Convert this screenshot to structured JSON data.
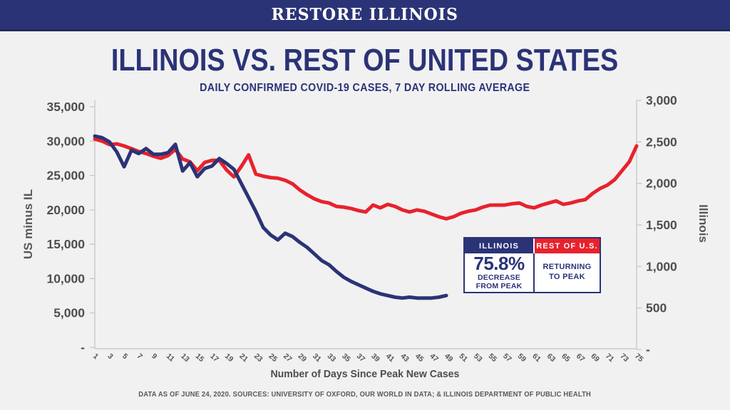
{
  "banner": {
    "title": "RESTORE ILLINOIS"
  },
  "title": "ILLINOIS VS. REST OF UNITED STATES",
  "subtitle": "DAILY CONFIRMED COVID-19 CASES, 7 DAY ROLLING AVERAGE",
  "colors": {
    "navy": "#2b3377",
    "red": "#e8222d",
    "banner_bg": "#2b3377",
    "axis_text": "#4d4e50",
    "x_tick_text": "#55565a",
    "muted_text": "#58595b",
    "axis_line": "#c4c4c7",
    "background": "#f1f1f2"
  },
  "chart_data": {
    "type": "line",
    "title": "ILLINOIS VS. REST OF UNITED STATES",
    "subtitle": "DAILY CONFIRMED COVID-19 CASES, 7 DAY ROLLING AVERAGE",
    "xlabel": "Number of Days Since Peak New Cases",
    "x_ticks": [
      1,
      3,
      5,
      7,
      9,
      11,
      13,
      15,
      17,
      19,
      21,
      23,
      25,
      27,
      29,
      31,
      33,
      35,
      37,
      39,
      41,
      43,
      45,
      47,
      49,
      51,
      53,
      55,
      57,
      59,
      61,
      63,
      65,
      67,
      69,
      71,
      73,
      75
    ],
    "x_range": [
      1,
      75
    ],
    "grid": false,
    "legend_position": "inside-right",
    "left_axis": {
      "label": "US minus IL",
      "min": 0,
      "max": 35000,
      "ticks": [
        "35,000",
        "30,000",
        "25,000",
        "20,000",
        "15,000",
        "10,000",
        "5,000",
        "-"
      ]
    },
    "right_axis": {
      "label": "Illinois",
      "min": 0,
      "max": 3000,
      "ticks": [
        "3,000",
        "2,500",
        "2,000",
        "1,500",
        "1,000",
        "500",
        "-"
      ]
    },
    "series": [
      {
        "name": "Rest of U.S. (US minus IL)",
        "axis": "left",
        "color_key": "red",
        "x_start": 1,
        "x_step": 1,
        "values": [
          30300,
          30000,
          29500,
          29600,
          29300,
          28900,
          28500,
          28200,
          27800,
          27500,
          27900,
          28800,
          27400,
          27000,
          25700,
          26900,
          27200,
          27200,
          25800,
          24800,
          26300,
          28000,
          25200,
          24900,
          24700,
          24600,
          24300,
          23800,
          22900,
          22200,
          21600,
          21200,
          21000,
          20500,
          20400,
          20200,
          19900,
          19700,
          20700,
          20300,
          20800,
          20500,
          20000,
          19700,
          20000,
          19800,
          19400,
          19000,
          18700,
          19000,
          19500,
          19800,
          20000,
          20400,
          20700,
          20700,
          20700,
          20900,
          21000,
          20500,
          20300,
          20700,
          21000,
          21300,
          20800,
          21000,
          21300,
          21500,
          22400,
          23100,
          23600,
          24400,
          25700,
          27000,
          29300
        ]
      },
      {
        "name": "Illinois",
        "axis": "right",
        "color_key": "navy",
        "x_start": 1,
        "x_step": 1,
        "values": [
          2570,
          2550,
          2500,
          2380,
          2200,
          2400,
          2360,
          2420,
          2350,
          2350,
          2370,
          2470,
          2150,
          2250,
          2080,
          2180,
          2210,
          2300,
          2240,
          2170,
          2000,
          1830,
          1660,
          1470,
          1380,
          1320,
          1400,
          1360,
          1290,
          1230,
          1150,
          1070,
          1020,
          940,
          870,
          820,
          780,
          740,
          700,
          670,
          650,
          630,
          620,
          630,
          620,
          620,
          620,
          630,
          650
        ]
      }
    ]
  },
  "legend": {
    "illinois": {
      "header": "ILLINOIS",
      "stat": "75.8%",
      "caption_line1": "DECREASE",
      "caption_line2": "FROM PEAK"
    },
    "rest_of_us": {
      "header": "REST OF U.S.",
      "caption_line1": "RETURNING",
      "caption_line2": "TO PEAK"
    }
  },
  "footer": "DATA AS OF JUNE 24, 2020. SOURCES: UNIVERSITY OF OXFORD, OUR WORLD IN DATA; & ILLINOIS DEPARTMENT OF PUBLIC HEALTH"
}
